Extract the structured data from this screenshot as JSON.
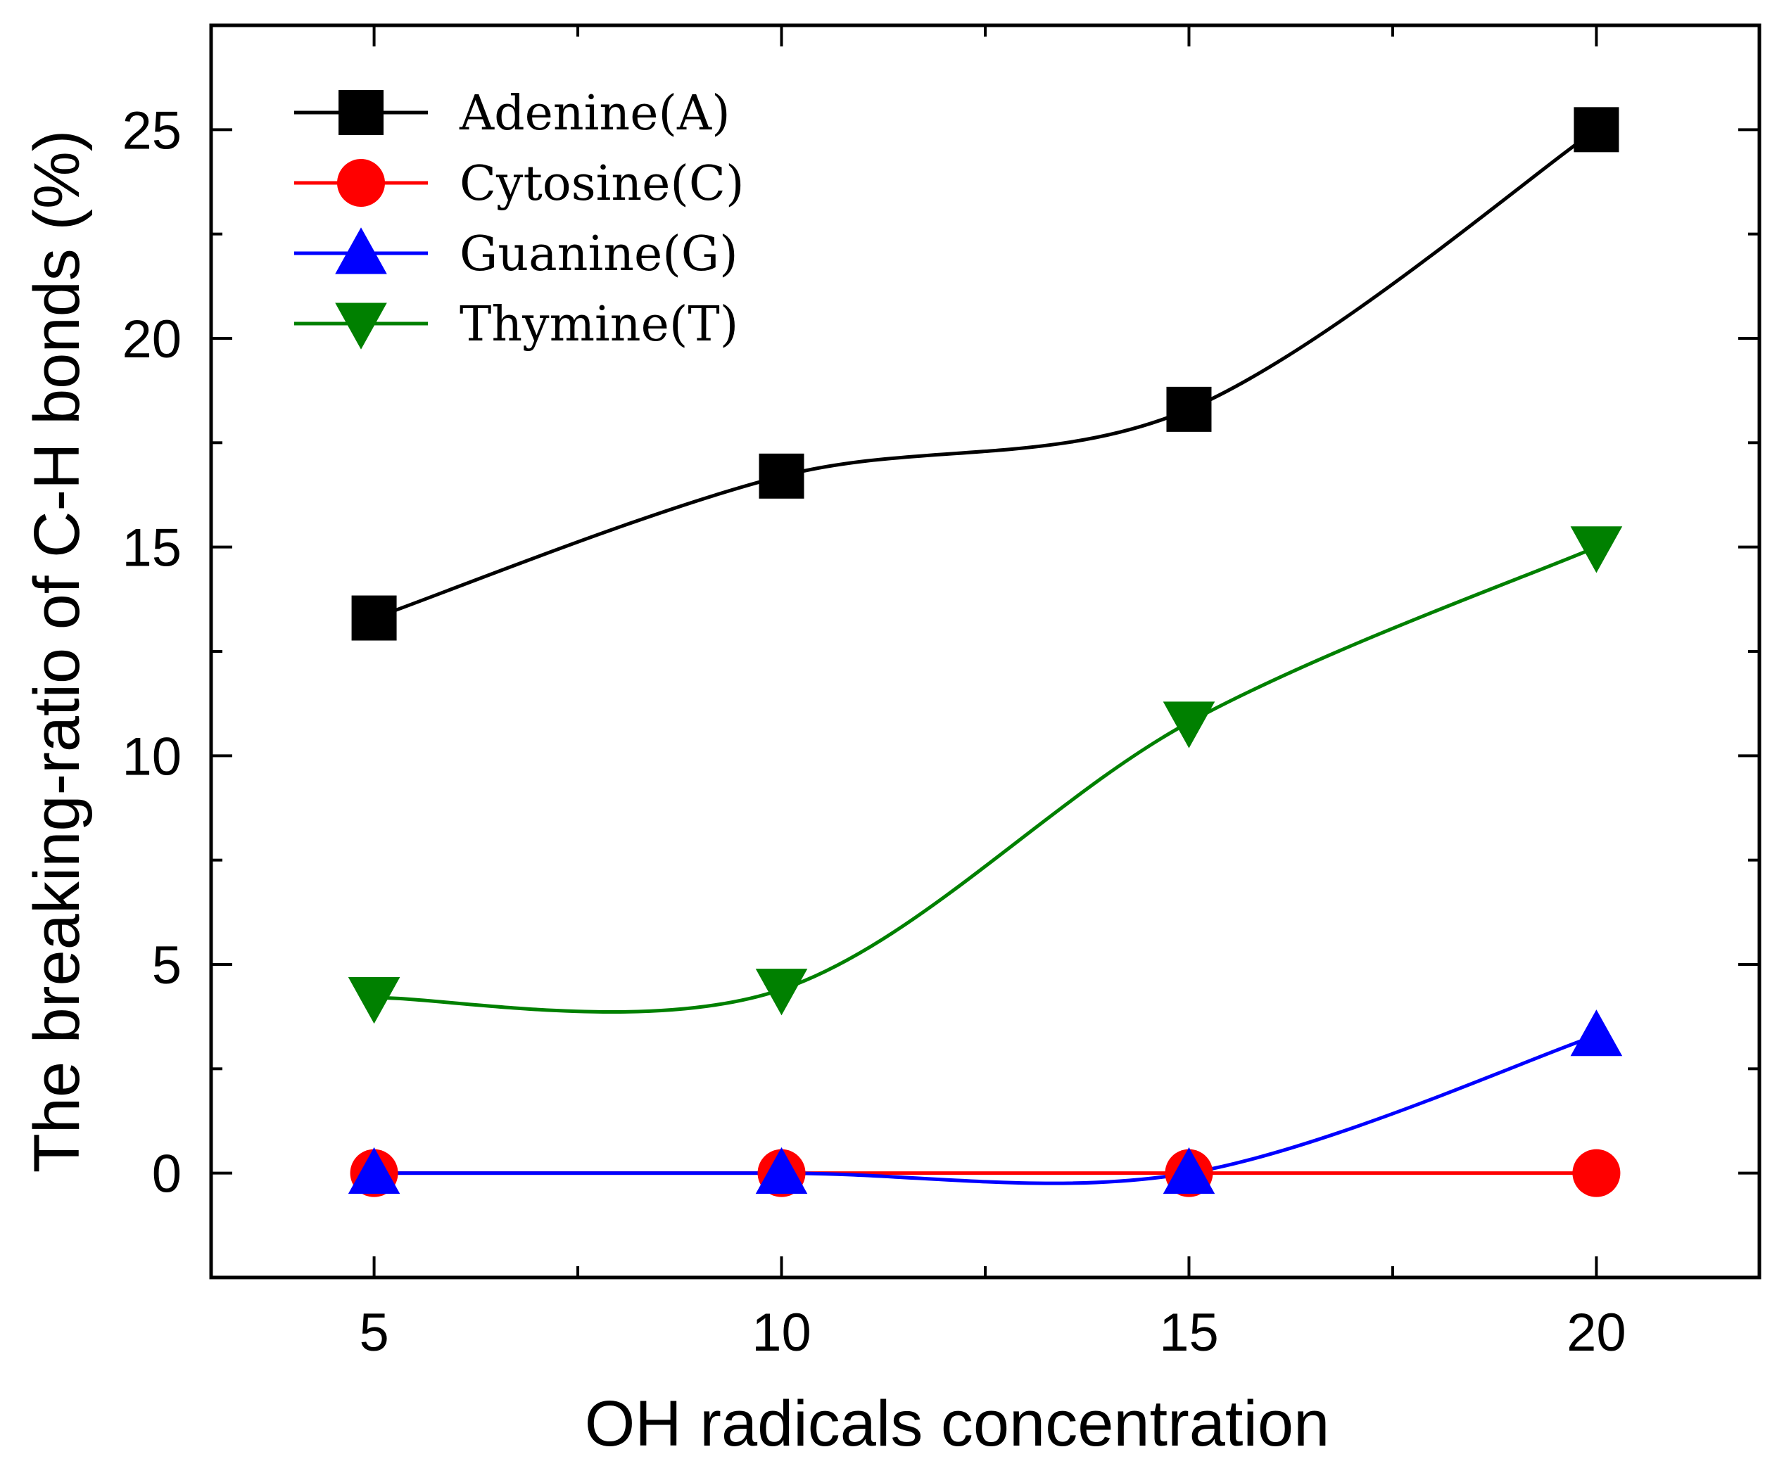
{
  "chart_data": {
    "type": "line",
    "xlabel": "OH radicals concentration",
    "ylabel": "The breaking-ratio of C-H bonds (%)",
    "x": [
      5,
      10,
      15,
      20
    ],
    "xlim": [
      3,
      22
    ],
    "ylim": [
      -2.5,
      27.5
    ],
    "xticks": [
      5,
      10,
      15,
      20
    ],
    "yticks": [
      0,
      5,
      10,
      15,
      20,
      25
    ],
    "grid": false,
    "legend_position": "top-left",
    "series": [
      {
        "name": "Adenine(A)",
        "values": [
          13.3,
          16.7,
          18.3,
          25.0
        ],
        "color": "#000000",
        "marker": "square"
      },
      {
        "name": "Cytosine(C)",
        "values": [
          0,
          0,
          0,
          0
        ],
        "color": "#ff0000",
        "marker": "circle"
      },
      {
        "name": "Guanine(G)",
        "values": [
          0,
          0,
          0,
          3.3
        ],
        "color": "#0000ff",
        "marker": "triangle-up"
      },
      {
        "name": "Thymine(T)",
        "values": [
          4.2,
          4.4,
          10.8,
          15.0
        ],
        "color": "#008000",
        "marker": "triangle-down"
      }
    ]
  }
}
